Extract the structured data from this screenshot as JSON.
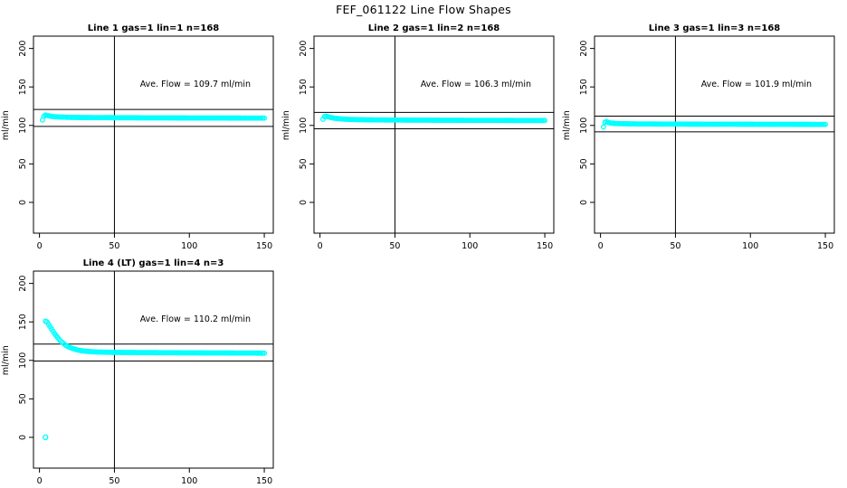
{
  "title": "FEF_061122  Line Flow Shapes",
  "axis": {
    "ylabel": "ml/min",
    "xlabel": "",
    "x_ticks": [
      0,
      50,
      100,
      150
    ],
    "y_ticks": [
      0,
      50,
      100,
      150,
      200
    ],
    "xlim": [
      -4,
      156
    ],
    "ylim": [
      -40,
      216
    ],
    "vline_x": 50,
    "grid": false
  },
  "marker": "open-circle",
  "marker_color": "#00FFFF",
  "line_color": "#000000",
  "background_color": "#FFFFFF",
  "chart_data": [
    {
      "type": "scatter",
      "title": "Line 1 gas=1 lin=1 n=168",
      "annotation": "Ave. Flow =  109.7  ml/min",
      "ave_flow": 109.7,
      "ref_hlines": [
        120.7,
        98.7
      ],
      "ylabel": "ml/min",
      "keypoints": [
        [
          2,
          107
        ],
        [
          3,
          112
        ],
        [
          4,
          113.5
        ],
        [
          5,
          113
        ],
        [
          6,
          112.5
        ],
        [
          8,
          111.8
        ],
        [
          10,
          111.3
        ],
        [
          15,
          110.8
        ],
        [
          20,
          110.5
        ],
        [
          30,
          110.2
        ],
        [
          50,
          110
        ],
        [
          75,
          109.8
        ],
        [
          100,
          109.7
        ],
        [
          125,
          109.6
        ],
        [
          150,
          109.5
        ]
      ],
      "outliers": []
    },
    {
      "type": "scatter",
      "title": "Line 2 gas=1 lin=2 n=168",
      "annotation": "Ave. Flow =  106.3  ml/min",
      "ave_flow": 106.3,
      "ref_hlines": [
        116.9,
        95.7
      ],
      "ylabel": "ml/min",
      "keypoints": [
        [
          2,
          108
        ],
        [
          3,
          111.5
        ],
        [
          4,
          112
        ],
        [
          5,
          111.5
        ],
        [
          6,
          110.8
        ],
        [
          8,
          110
        ],
        [
          10,
          109.2
        ],
        [
          15,
          108.3
        ],
        [
          20,
          107.8
        ],
        [
          30,
          107.3
        ],
        [
          50,
          107
        ],
        [
          75,
          106.8
        ],
        [
          100,
          106.6
        ],
        [
          125,
          106.5
        ],
        [
          150,
          106.4
        ]
      ],
      "outliers": []
    },
    {
      "type": "scatter",
      "title": "Line 3 gas=1 lin=3 n=168",
      "annotation": "Ave. Flow =  101.9  ml/min",
      "ave_flow": 101.9,
      "ref_hlines": [
        112.1,
        91.7
      ],
      "ylabel": "ml/min",
      "keypoints": [
        [
          2,
          98
        ],
        [
          3,
          104
        ],
        [
          4,
          105
        ],
        [
          5,
          104
        ],
        [
          7,
          103
        ],
        [
          10,
          102.5
        ],
        [
          15,
          102.2
        ],
        [
          25,
          101.9
        ],
        [
          50,
          101.7
        ],
        [
          100,
          101.5
        ],
        [
          150,
          101.3
        ]
      ],
      "outliers": []
    },
    {
      "type": "scatter",
      "title": "Line 4 (LT) gas=1 lin=4 n=3",
      "annotation": "Ave. Flow =  110.2  ml/min",
      "ave_flow": 110.2,
      "ref_hlines": [
        121.2,
        99.2
      ],
      "ylabel": "ml/min",
      "keypoints": [
        [
          4,
          151
        ],
        [
          5,
          150
        ],
        [
          6,
          147
        ],
        [
          7,
          144
        ],
        [
          8,
          141
        ],
        [
          9,
          138
        ],
        [
          10,
          135
        ],
        [
          11,
          132.5
        ],
        [
          12,
          130
        ],
        [
          13,
          127.5
        ],
        [
          14,
          125.5
        ],
        [
          15,
          123.5
        ],
        [
          16,
          122
        ],
        [
          17,
          120.5
        ],
        [
          18,
          119
        ],
        [
          19,
          118
        ],
        [
          20,
          117
        ],
        [
          22,
          115.5
        ],
        [
          24,
          114.3
        ],
        [
          26,
          113.3
        ],
        [
          28,
          112.5
        ],
        [
          30,
          112
        ],
        [
          35,
          111.2
        ],
        [
          40,
          110.8
        ],
        [
          50,
          110.4
        ],
        [
          60,
          110.2
        ],
        [
          80,
          110
        ],
        [
          100,
          109.8
        ],
        [
          125,
          109.6
        ],
        [
          150,
          109.4
        ]
      ],
      "outliers": [
        [
          4,
          0
        ]
      ]
    }
  ]
}
